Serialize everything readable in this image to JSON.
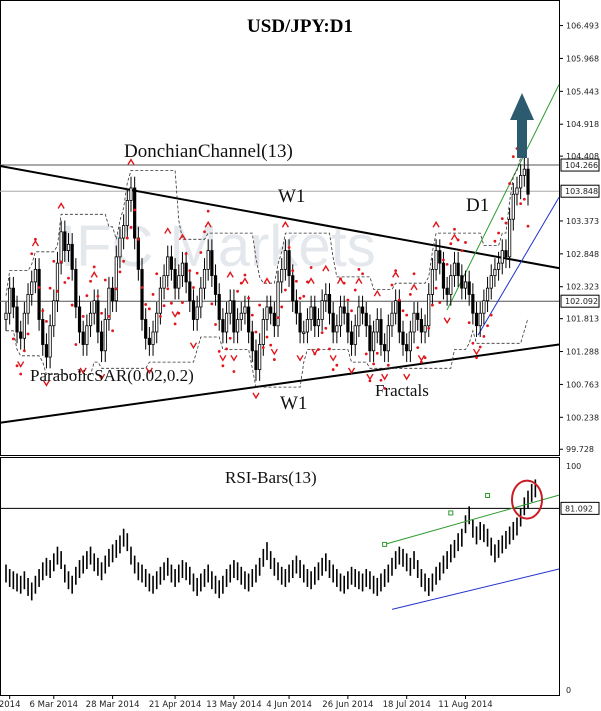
{
  "chart_data": [
    {
      "type": "candlestick",
      "title": "USD/JPY:D1",
      "ylim": [
        99.5,
        106.8
      ],
      "price_ticks": [
        "106.493",
        "105.968",
        "105.443",
        "104.918",
        "104.408",
        "103.373",
        "102.848",
        "102.323",
        "101.813",
        "101.288",
        "100.763",
        "100.238",
        "99.728"
      ],
      "badges": [
        {
          "label": "104.266",
          "value": 104.266,
          "line": "#555555"
        },
        {
          "label": "103.848",
          "value": 103.848,
          "line": "#aaaaaa"
        },
        {
          "label": "102.092",
          "value": 102.092,
          "line": "#555555"
        }
      ],
      "annotations": {
        "donchian": "DonchianChannel(13)",
        "w1_top": "W1",
        "w1_bottom": "W1",
        "d1": "D1",
        "psar": "ParabolicSAR(0.02,0.2)",
        "fractals": "Fractals",
        "watermark": "IFC Markets"
      },
      "closes": [
        101.9,
        102.3,
        102.0,
        101.6,
        101.5,
        101.9,
        102.2,
        102.4,
        102.6,
        101.8,
        101.4,
        101.2,
        101.7,
        102.1,
        102.7,
        103.2,
        102.9,
        103.0,
        102.6,
        102.0,
        101.6,
        101.4,
        101.7,
        101.9,
        102.1,
        101.6,
        101.3,
        101.8,
        102.3,
        102.1,
        102.8,
        103.1,
        103.3,
        103.7,
        103.9,
        103.1,
        102.6,
        101.8,
        101.5,
        101.4,
        101.6,
        101.9,
        102.3,
        102.5,
        102.8,
        102.6,
        102.3,
        102.5,
        102.7,
        102.4,
        102.1,
        101.8,
        102.0,
        102.3,
        102.6,
        102.9,
        102.5,
        102.2,
        101.8,
        101.6,
        101.9,
        102.1,
        101.6,
        101.8,
        101.9,
        102.0,
        101.6,
        101.3,
        101.0,
        101.4,
        101.8,
        102.0,
        101.9,
        101.7,
        102.4,
        102.6,
        102.9,
        102.5,
        102.1,
        101.9,
        101.6,
        101.6,
        101.8,
        102.0,
        101.7,
        101.8,
        102.1,
        102.2,
        101.9,
        101.6,
        101.7,
        102.0,
        101.9,
        101.6,
        101.4,
        101.7,
        102.0,
        101.9,
        101.7,
        101.3,
        101.6,
        101.8,
        101.4,
        101.3,
        101.7,
        101.9,
        102.1,
        101.6,
        101.4,
        101.3,
        101.6,
        101.9,
        101.8,
        101.6,
        101.7,
        102.2,
        102.6,
        102.9,
        102.7,
        102.3,
        102.2,
        102.5,
        102.7,
        102.5,
        102.3,
        102.4,
        102.2,
        101.9,
        101.7,
        101.9,
        102.1,
        102.3,
        102.5,
        102.6,
        102.7,
        102.9,
        102.8,
        103.4,
        103.8,
        103.9,
        104.1,
        104.2,
        103.8
      ],
      "rsi": {
        "label": "RSI-Bars(13)",
        "ylim": [
          0,
          100
        ],
        "ticks": [
          "100",
          "0"
        ],
        "level_label": "81.092",
        "level": 81.092,
        "values": [
          52,
          50,
          49,
          48,
          47,
          49,
          46,
          44,
          47,
          50,
          53,
          55,
          54,
          57,
          60,
          58,
          52,
          49,
          47,
          51,
          54,
          56,
          58,
          60,
          57,
          55,
          53,
          56,
          59,
          61,
          63,
          65,
          68,
          66,
          60,
          56,
          53,
          52,
          50,
          48,
          47,
          49,
          51,
          53,
          55,
          52,
          50,
          52,
          54,
          53,
          51,
          48,
          46,
          48,
          50,
          52,
          49,
          47,
          45,
          47,
          50,
          52,
          54,
          53,
          51,
          49,
          48,
          50,
          52,
          55,
          59,
          62,
          58,
          55,
          53,
          51,
          50,
          52,
          54,
          56,
          54,
          52,
          50,
          49,
          51,
          53,
          55,
          57,
          54,
          52,
          50,
          48,
          47,
          49,
          51,
          50,
          49,
          48,
          50,
          49,
          47,
          46,
          48,
          50,
          52,
          55,
          58,
          60,
          59,
          57,
          55,
          58,
          54,
          50,
          48,
          46,
          48,
          51,
          53,
          56,
          58,
          61,
          63,
          66,
          68,
          74,
          78,
          72,
          69,
          71,
          70,
          68,
          64,
          61,
          63,
          65,
          67,
          69,
          71,
          73,
          77,
          82,
          85,
          88,
          90
        ]
      },
      "x_labels": [
        {
          "label": "2014",
          "i": 1
        },
        {
          "label": "6 Mar 2014",
          "i": 13
        },
        {
          "label": "28 Mar 2014",
          "i": 29
        },
        {
          "label": "21 Apr 2014",
          "i": 46
        },
        {
          "label": "13 May 2014",
          "i": 62
        },
        {
          "label": "4 Jun 2014",
          "i": 77
        },
        {
          "label": "26 Jun 2014",
          "i": 93
        },
        {
          "label": "18 Jul 2014",
          "i": 109
        },
        {
          "label": "11 Aug 2014",
          "i": 125
        }
      ]
    }
  ]
}
